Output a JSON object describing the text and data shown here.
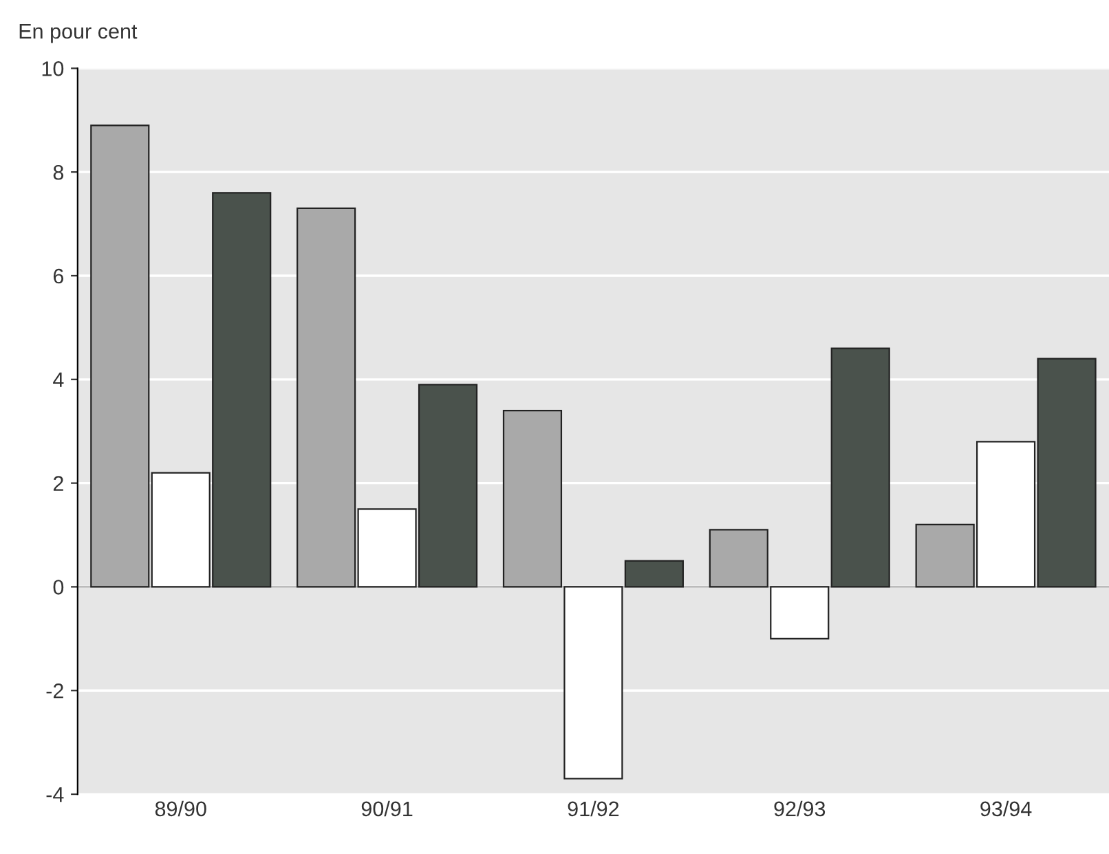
{
  "chart_data": {
    "type": "bar",
    "ylabel": "En pour cent",
    "categories": [
      "89/90",
      "90/91",
      "91/92",
      "92/93",
      "93/94"
    ],
    "series": [
      {
        "color": "#a9a9a9",
        "values": [
          8.9,
          7.3,
          3.4,
          1.1,
          1.2
        ]
      },
      {
        "color": "#ffffff",
        "values": [
          2.2,
          1.5,
          -3.7,
          -1.0,
          2.8
        ]
      },
      {
        "color": "#4a524c",
        "values": [
          7.6,
          3.9,
          0.5,
          4.6,
          4.4
        ]
      }
    ],
    "ylim": [
      -4,
      10
    ],
    "yticks": [
      -4,
      -2,
      0,
      2,
      4,
      6,
      8,
      10
    ],
    "grid": "y",
    "legend": false
  }
}
